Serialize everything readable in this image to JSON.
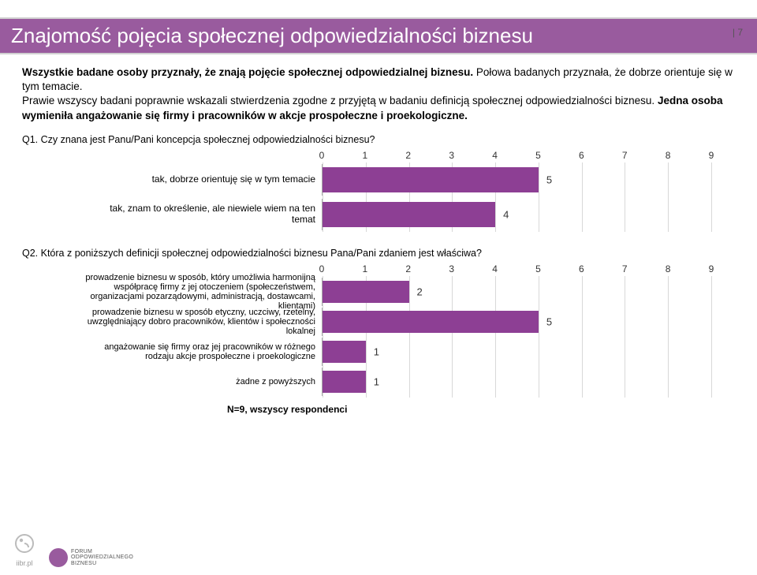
{
  "page_number": "| 7",
  "title": "Znajomość pojęcia społecznej odpowiedzialności biznesu",
  "intro": {
    "p1a": "Wszystkie badane osoby przyznały, że znają pojęcie społecznej odpowiedzialnej biznesu. ",
    "p1b": "Połowa badanych przyznała, że dobrze orientuje się w tym temacie.",
    "p2a": "Prawie wszyscy badani poprawnie wskazali stwierdzenia zgodne z przyjętą w badaniu definicją społecznej odpowiedzialności biznesu. ",
    "p2b": "Jedna osoba wymieniła angażowanie się firmy i pracowników w akcje prospołeczne i proekologiczne."
  },
  "q1": {
    "text": "Q1. Czy znana jest Panu/Pani koncepcja społecznej odpowiedzialności biznesu?",
    "xmin": 0,
    "xmax": 9,
    "xtick_step": 1,
    "bar_color": "#8d3f94",
    "background": "#ffffff",
    "grid_color": "#d8d8d8",
    "rows": [
      {
        "label": "tak, dobrze orientuję się w tym temacie",
        "value": 5
      },
      {
        "label": "tak, znam to określenie, ale niewiele wiem na ten temat",
        "value": 4
      }
    ]
  },
  "q2": {
    "text": "Q2. Która z poniższych definicji społecznej odpowiedzialności biznesu Pana/Pani zdaniem jest właściwa?",
    "xmin": 0,
    "xmax": 9,
    "xtick_step": 1,
    "bar_color": "#8d3f94",
    "grid_color": "#d8d8d8",
    "rows": [
      {
        "label": "prowadzenie biznesu w sposób, który umożliwia harmonijną współpracę firmy z jej otoczeniem (społeczeństwem, organizacjami pozarządowymi, administracją, dostawcami, klientami)",
        "value": 2
      },
      {
        "label": "prowadzenie biznesu w sposób etyczny, uczciwy, rzetelny, uwzględniający dobro pracowników, klientów i społeczności lokalnej",
        "value": 5
      },
      {
        "label": "angażowanie się firmy oraz jej pracowników w różnego rodzaju akcje prospołeczne i proekologiczne",
        "value": 1
      },
      {
        "label": "żadne z powyższych",
        "value": 1
      }
    ]
  },
  "footer_note": "N=9, wszyscy respondenci",
  "logos": {
    "iibr": "iibr.pl",
    "forum_l1": "FORUM",
    "forum_l2": "ODPOWIEDZIALNEGO",
    "forum_l3": "BIZNESU"
  }
}
